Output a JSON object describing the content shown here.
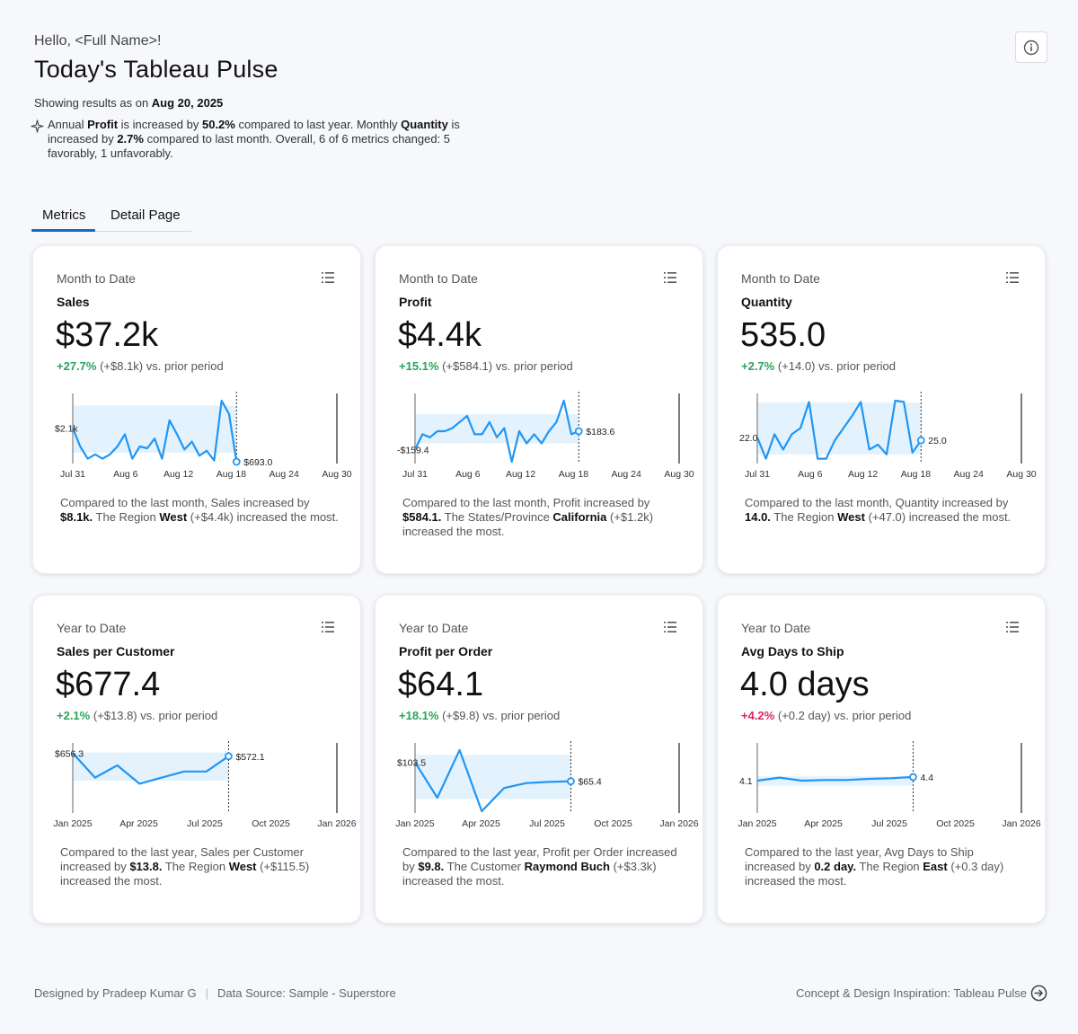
{
  "header": {
    "greeting": "Hello, <Full Name>!",
    "title": "Today's Tableau Pulse",
    "asof_prefix": "Showing results as on ",
    "asof_date": "Aug 20, 2025",
    "summary": {
      "s1": "Annual ",
      "b1": "Profit",
      "s2": " is increased by ",
      "b2": "50.2%",
      "s3": " compared to last year. Monthly ",
      "b3": "Quantity",
      "s4": " is increased by ",
      "b4": "2.7%",
      "s5": " compared to last month. Overall, 6 of 6 metrics changed: 5 favorably, 1 unfavorably."
    }
  },
  "tabs": [
    {
      "label": "Metrics"
    },
    {
      "label": "Detail Page"
    }
  ],
  "cards": [
    {
      "period": "Month to Date",
      "metric": "Sales",
      "value": "$37.2k",
      "pct": "+27.7%",
      "pct_status": "pos",
      "delta": "(+$8.1k) vs. prior period",
      "desc": {
        "s1": "Compared to the last month, Sales increased by ",
        "b1": "$8.1k.",
        "s2": " The Region ",
        "b2": "West",
        "s3": " (+$4.4k) increased the most."
      },
      "chart": {
        "axis_labels": [
          "Jul 31",
          "Aug 6",
          "Aug 12",
          "Aug 18",
          "Aug 24",
          "Aug 30"
        ],
        "start_label": "$2.1k",
        "end_label": "$693.0",
        "series": [
          0.55,
          0.25,
          0.05,
          0.12,
          0.05,
          0.12,
          0.25,
          0.45,
          0.05,
          0.25,
          0.22,
          0.38,
          0.05,
          0.68,
          0.45,
          0.2,
          0.33,
          0.1,
          0.18,
          0.02,
          1.0,
          0.78,
          0.0
        ],
        "band": [
          0.15,
          0.92
        ],
        "start_level": 0.55,
        "end_level": 0.0,
        "end_fraction": 0.62
      }
    },
    {
      "period": "Month to Date",
      "metric": "Profit",
      "value": "$4.4k",
      "pct": "+15.1%",
      "pct_status": "pos",
      "delta": "(+$584.1) vs. prior period",
      "desc": {
        "s1": "Compared to the last month, Profit increased by ",
        "b1": "$584.1.",
        "s2": " The States/Province ",
        "b2": "California",
        "s3": " (+$1.2k) increased the most."
      },
      "chart": {
        "axis_labels": [
          "Jul 31",
          "Aug 6",
          "Aug 12",
          "Aug 18",
          "Aug 24",
          "Aug 30"
        ],
        "start_label": "-$159.4",
        "end_label": "$183.6",
        "series": [
          0.2,
          0.45,
          0.4,
          0.5,
          0.5,
          0.55,
          0.65,
          0.75,
          0.45,
          0.45,
          0.65,
          0.4,
          0.55,
          0.0,
          0.5,
          0.3,
          0.45,
          0.3,
          0.5,
          0.65,
          1.0,
          0.45,
          0.5
        ],
        "band": [
          0.3,
          0.78
        ],
        "start_level": 0.2,
        "end_level": 0.5,
        "end_fraction": 0.62
      }
    },
    {
      "period": "Month to Date",
      "metric": "Quantity",
      "value": "535.0",
      "pct": "+2.7%",
      "pct_status": "pos",
      "delta": "(+14.0) vs. prior period",
      "desc": {
        "s1": "Compared to the last month, Quantity increased by ",
        "b1": "14.0.",
        "s2": " The Region ",
        "b2": "West",
        "s3": " (+47.0) increased the most."
      },
      "chart": {
        "axis_labels": [
          "Jul 31",
          "Aug 6",
          "Aug 12",
          "Aug 18",
          "Aug 24",
          "Aug 30"
        ],
        "start_label": "22.0",
        "end_label": "25.0",
        "series": [
          0.4,
          0.05,
          0.45,
          0.2,
          0.45,
          0.55,
          0.98,
          0.05,
          0.05,
          0.35,
          0.55,
          0.75,
          0.98,
          0.2,
          0.28,
          0.12,
          1.0,
          0.98,
          0.15,
          0.35
        ],
        "band": [
          0.12,
          0.97
        ],
        "start_level": 0.4,
        "end_level": 0.35,
        "end_fraction": 0.62
      }
    },
    {
      "period": "Year to Date",
      "metric": "Sales per Customer",
      "value": "$677.4",
      "pct": "+2.1%",
      "pct_status": "pos",
      "delta": "(+$13.8) vs. prior period",
      "desc": {
        "s1": "Compared to the last year, Sales per Customer increased by ",
        "b1": "$13.8.",
        "s2": " The Region ",
        "b2": "West",
        "s3": " (+$115.5) increased the most."
      },
      "chart": {
        "axis_labels": [
          "Jan 2025",
          "Apr 2025",
          "Jul 2025",
          "Oct 2025",
          "Jan 2026"
        ],
        "start_label": "$656.3",
        "end_label": "$572.1",
        "series": [
          0.95,
          0.55,
          0.75,
          0.45,
          0.55,
          0.65,
          0.65,
          0.9
        ],
        "band": [
          0.5,
          0.96
        ],
        "start_level": 0.95,
        "end_level": 0.9,
        "end_fraction": 0.59
      }
    },
    {
      "period": "Year to Date",
      "metric": "Profit per Order",
      "value": "$64.1",
      "pct": "+18.1%",
      "pct_status": "pos",
      "delta": "(+$9.8) vs. prior period",
      "desc": {
        "s1": "Compared to the last year, Profit per Order increased by ",
        "b1": "$9.8.",
        "s2": " The Customer ",
        "b2": "Raymond Buch",
        "s3": " (+$3.3k) increased the most."
      },
      "chart": {
        "axis_labels": [
          "Jan 2025",
          "Apr 2025",
          "Jul 2025",
          "Oct 2025",
          "Jan 2026"
        ],
        "start_label": "$103.5",
        "end_label": "$65.4",
        "series": [
          0.8,
          0.22,
          1.0,
          0.0,
          0.38,
          0.46,
          0.48,
          0.49
        ],
        "band": [
          0.2,
          0.92
        ],
        "start_level": 0.8,
        "end_level": 0.49,
        "end_fraction": 0.59
      }
    },
    {
      "period": "Year to Date",
      "metric": "Avg Days to Ship",
      "value": "4.0 days",
      "pct": "+4.2%",
      "pct_status": "neg",
      "delta": "(+0.2 day) vs. prior period",
      "desc": {
        "s1": "Compared to the last year, Avg Days to Ship increased by ",
        "b1": "0.2 day.",
        "s2": " The Region ",
        "b2": "East",
        "s3": " (+0.3 day) increased the most."
      },
      "chart": {
        "axis_labels": [
          "Jan 2025",
          "Apr 2025",
          "Jul 2025",
          "Oct 2025",
          "Jan 2026"
        ],
        "start_label": "4.1",
        "end_label": "4.4",
        "series": [
          0.5,
          0.55,
          0.5,
          0.51,
          0.51,
          0.53,
          0.54,
          0.56
        ],
        "band": [
          0.42,
          0.57
        ],
        "start_level": 0.5,
        "end_level": 0.56,
        "end_fraction": 0.59
      }
    }
  ],
  "footer": {
    "designed_by": "Designed by Pradeep Kumar G",
    "separator": "|",
    "data_source": "Data Source: Sample - Superstore",
    "inspiration": "Concept & Design Inspiration: Tableau Pulse"
  },
  "colors": {
    "accent": "#1a66c9",
    "line": "#2196f3",
    "band": "#e3f2fd",
    "positive": "#2aa35b",
    "negative": "#e0245e"
  }
}
